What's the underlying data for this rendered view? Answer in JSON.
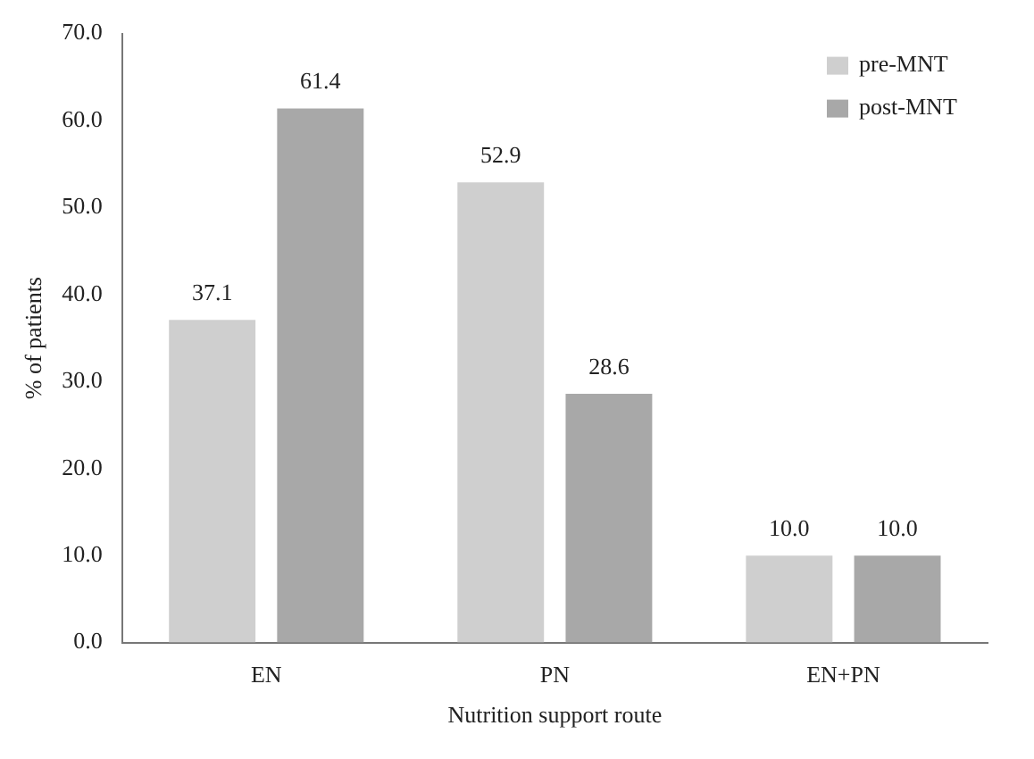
{
  "chart_data": {
    "type": "bar",
    "xlabel": "Nutrition support route",
    "ylabel": "% of patients",
    "categories": [
      "EN",
      "PN",
      "EN+PN"
    ],
    "series": [
      {
        "name": "pre-MNT",
        "color": "#cfcfcf",
        "values": [
          37.1,
          52.9,
          10.0
        ],
        "value_labels": [
          "37.1",
          "52.9",
          "10.0"
        ]
      },
      {
        "name": "post-MNT",
        "color": "#a8a8a8",
        "values": [
          61.4,
          28.6,
          10.0
        ],
        "value_labels": [
          "61.4",
          "28.6",
          "10.0"
        ]
      }
    ],
    "ylim": [
      0,
      70
    ],
    "yticks": [
      {
        "value": 0,
        "label": "0.0"
      },
      {
        "value": 10,
        "label": "10.0"
      },
      {
        "value": 20,
        "label": "20.0"
      },
      {
        "value": 30,
        "label": "30.0"
      },
      {
        "value": 40,
        "label": "40.0"
      },
      {
        "value": 50,
        "label": "50.0"
      },
      {
        "value": 60,
        "label": "60.0"
      },
      {
        "value": 70,
        "label": "70.0"
      }
    ],
    "grid": false,
    "legend": "top right"
  }
}
